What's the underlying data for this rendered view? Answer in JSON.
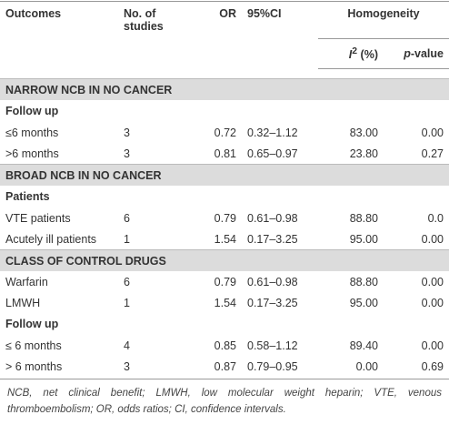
{
  "table": {
    "header": {
      "outcomes": "Outcomes",
      "studies": "No. of studies",
      "or": "OR",
      "ci": "95%CI",
      "homogeneity": "Homogeneity",
      "i2": {
        "symbol": "I",
        "sup": "2",
        "unit": "(%)"
      },
      "p": {
        "symbol": "p",
        "rest": "-value"
      }
    },
    "sections": [
      {
        "title": "NARROW NCB IN NO CANCER",
        "groups": [
          {
            "heading": "Follow up",
            "rows": [
              [
                "≤6 months",
                "3",
                "0.72",
                "0.32–1.12",
                "83.00",
                "0.00"
              ],
              [
                ">6 months",
                "3",
                "0.81",
                "0.65–0.97",
                "23.80",
                "0.27"
              ]
            ]
          }
        ]
      },
      {
        "title": "BROAD NCB IN NO CANCER",
        "groups": [
          {
            "heading": "Patients",
            "rows": [
              [
                "VTE patients",
                "6",
                "0.79",
                "0.61–0.98",
                "88.80",
                "0.0"
              ],
              [
                "Acutely ill patients",
                "1",
                "1.54",
                "0.17–3.25",
                "95.00",
                "0.00"
              ]
            ]
          }
        ]
      },
      {
        "title": "CLASS OF CONTROL DRUGS",
        "groups": [
          {
            "rows": [
              [
                "Warfarin",
                "6",
                "0.79",
                "0.61–0.98",
                "88.80",
                "0.00"
              ],
              [
                "LMWH",
                "1",
                "1.54",
                "0.17–3.25",
                "95.00",
                "0.00"
              ]
            ]
          },
          {
            "heading": "Follow up",
            "rows": [
              [
                "≤ 6 months",
                "4",
                "0.85",
                "0.58–1.12",
                "89.40",
                "0.00"
              ],
              [
                "> 6 months",
                "3",
                "0.87",
                "0.79–0.95",
                "0.00",
                "0.69"
              ]
            ]
          }
        ]
      }
    ],
    "footnote": "NCB, net clinical benefit; LMWH, low molecular weight heparin; VTE, venous thromboembolism; OR, odds ratios; CI, confidence intervals."
  }
}
